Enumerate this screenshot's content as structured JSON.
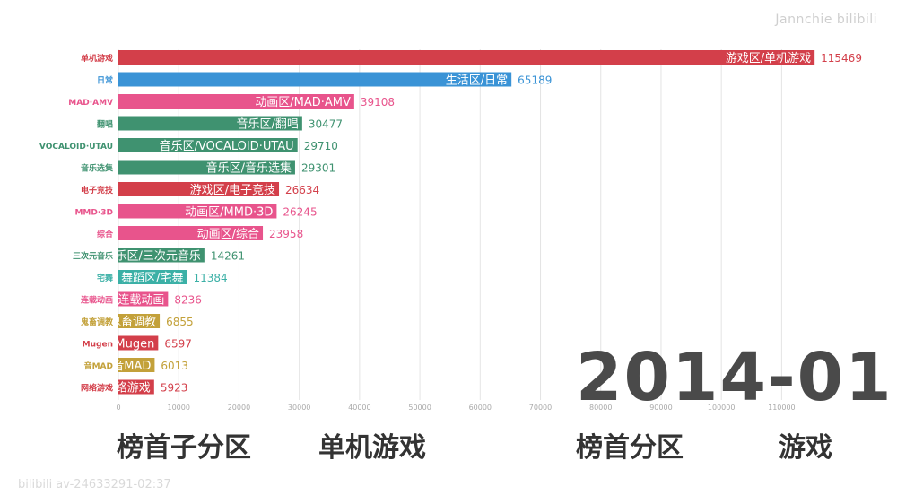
{
  "watermark": {
    "top_right": "Jannchie bilibili",
    "bottom_left": "bilibili av-24633291-02:37"
  },
  "date_label": "2014-01",
  "footer": {
    "left_label": "榜首子分区",
    "left_value": "单机游戏",
    "right_label": "榜首分区",
    "right_value": "游戏"
  },
  "chart_data": {
    "type": "bar",
    "orientation": "horizontal",
    "title": "",
    "xlabel": "",
    "ylabel": "",
    "xlim": [
      0,
      115000
    ],
    "x_ticks": [
      0,
      10000,
      20000,
      30000,
      40000,
      50000,
      60000,
      70000,
      80000,
      90000,
      100000,
      110000
    ],
    "grid": true,
    "categories": [
      "单机游戏",
      "日常",
      "MAD·AMV",
      "翻唱",
      "VOCALOID·UTAU",
      "音乐选集",
      "电子竞技",
      "MMD·3D",
      "综合",
      "三次元音乐",
      "宅舞",
      "连载动画",
      "鬼畜调教",
      "Mugen",
      "音MAD",
      "网络游戏"
    ],
    "bar_labels": [
      "游戏区/单机游戏",
      "生活区/日常",
      "动画区/MAD·AMV",
      "音乐区/翻唱",
      "音乐区/VOCALOID·UTAU",
      "音乐区/音乐选集",
      "游戏区/电子竞技",
      "动画区/MMD·3D",
      "动画区/综合",
      "音乐区/三次元音乐",
      "舞蹈区/宅舞",
      "番剧区/连载动画",
      "鬼畜区/鬼畜调教",
      "游戏区/Mugen",
      "鬼畜区/音MAD",
      "游戏区/网络游戏"
    ],
    "values": [
      115469,
      65189,
      39108,
      30477,
      29710,
      29301,
      26634,
      26245,
      23958,
      14261,
      11384,
      8236,
      6855,
      6597,
      6013,
      5923
    ],
    "colors": [
      "#d33f4a",
      "#3a93d6",
      "#e8548c",
      "#3f9270",
      "#3f9270",
      "#3f9270",
      "#d33f4a",
      "#e8548c",
      "#e8548c",
      "#3f9270",
      "#3bb0a6",
      "#e8548c",
      "#c3a13a",
      "#d33f4a",
      "#c3a13a",
      "#d33f4a"
    ]
  }
}
